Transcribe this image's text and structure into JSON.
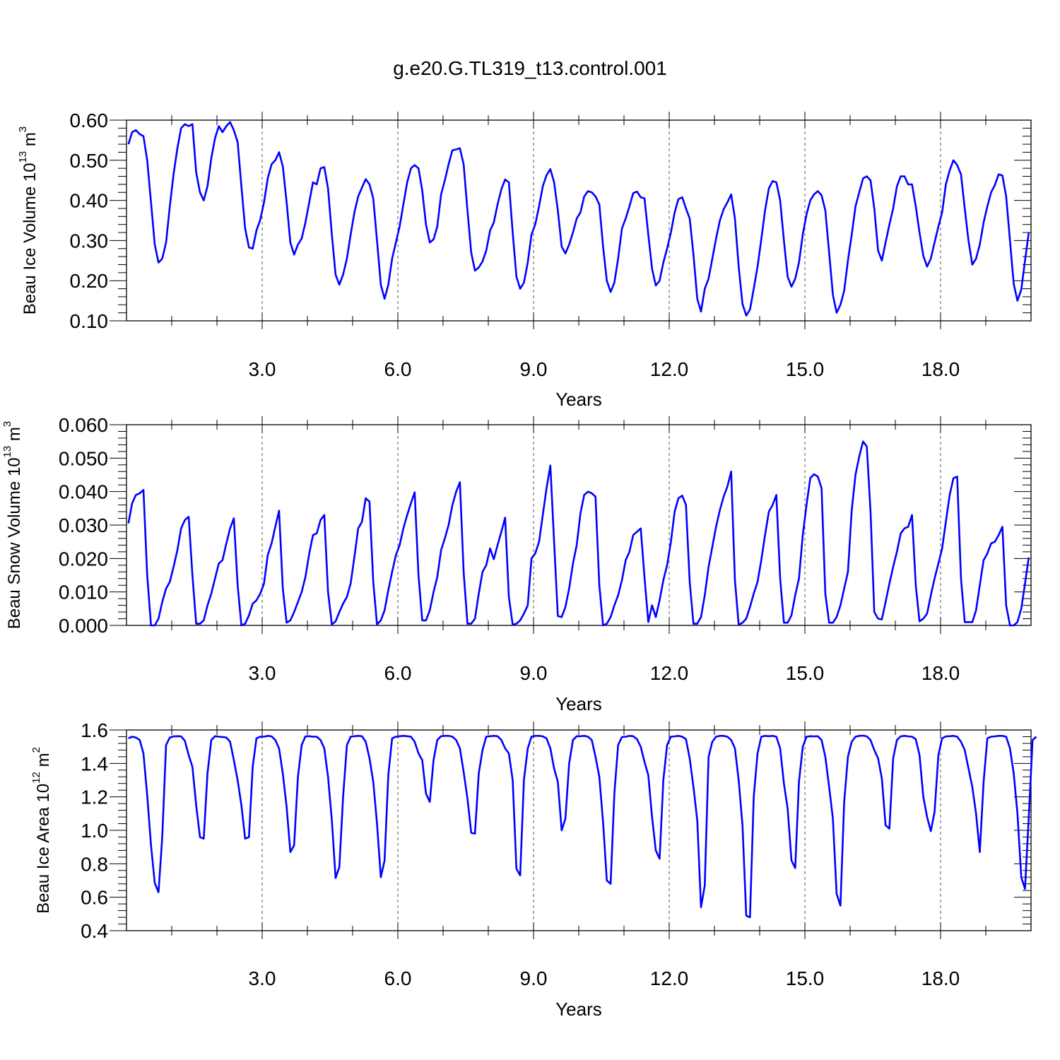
{
  "title": "g.e20.G.TL319_t13.control.001",
  "colors": {
    "series": "#0000ff",
    "axes": "#000000",
    "background": "#ffffff"
  },
  "chart_data": [
    {
      "type": "line",
      "name": "ice-volume",
      "title": "g.e20.G.TL319_t13.control.001",
      "xlabel": "Years",
      "ylabel": {
        "main": "Beau Ice Volume 10",
        "sup": "13",
        "mid": " m",
        "sup2": "3"
      },
      "xlim": [
        0.0,
        20.0
      ],
      "ylim": [
        0.1,
        0.6
      ],
      "xticks": [
        3.0,
        6.0,
        9.0,
        12.0,
        15.0,
        18.0
      ],
      "xtick_labels": [
        "3.0",
        "6.0",
        "9.0",
        "12.0",
        "15.0",
        "18.0"
      ],
      "yticks": [
        0.1,
        0.2,
        0.3,
        0.4,
        0.5,
        0.6
      ],
      "ytick_labels": [
        "0.10",
        "0.20",
        "0.30",
        "0.40",
        "0.50",
        "0.60"
      ],
      "grid": "vertical dashed at major x ticks",
      "x_start": 0.0417,
      "x_step": 0.0833,
      "series": [
        {
          "values": [
            0.54,
            0.57,
            0.575,
            0.565,
            0.56,
            0.5,
            0.395,
            0.29,
            0.245,
            0.255,
            0.295,
            0.385,
            0.465,
            0.53,
            0.58,
            0.59,
            0.585,
            0.59,
            0.47,
            0.42,
            0.4,
            0.435,
            0.505,
            0.555,
            0.585,
            0.57,
            0.585,
            0.595,
            0.575,
            0.545,
            0.435,
            0.33,
            0.283,
            0.28,
            0.325,
            0.352,
            0.395,
            0.455,
            0.49,
            0.5,
            0.52,
            0.485,
            0.395,
            0.295,
            0.265,
            0.29,
            0.305,
            0.345,
            0.395,
            0.445,
            0.44,
            0.48,
            0.483,
            0.43,
            0.315,
            0.215,
            0.19,
            0.215,
            0.255,
            0.315,
            0.37,
            0.41,
            0.432,
            0.453,
            0.44,
            0.405,
            0.3,
            0.19,
            0.155,
            0.19,
            0.255,
            0.295,
            0.335,
            0.39,
            0.445,
            0.48,
            0.488,
            0.48,
            0.425,
            0.34,
            0.295,
            0.303,
            0.335,
            0.415,
            0.45,
            0.49,
            0.525,
            0.527,
            0.53,
            0.49,
            0.375,
            0.27,
            0.225,
            0.233,
            0.248,
            0.275,
            0.325,
            0.345,
            0.39,
            0.428,
            0.452,
            0.445,
            0.32,
            0.21,
            0.18,
            0.195,
            0.245,
            0.315,
            0.34,
            0.385,
            0.435,
            0.463,
            0.478,
            0.445,
            0.375,
            0.285,
            0.268,
            0.29,
            0.32,
            0.355,
            0.37,
            0.41,
            0.423,
            0.42,
            0.41,
            0.39,
            0.285,
            0.2,
            0.172,
            0.195,
            0.255,
            0.33,
            0.355,
            0.385,
            0.418,
            0.422,
            0.408,
            0.405,
            0.315,
            0.23,
            0.188,
            0.2,
            0.245,
            0.28,
            0.32,
            0.37,
            0.403,
            0.408,
            0.38,
            0.355,
            0.265,
            0.155,
            0.123,
            0.18,
            0.205,
            0.255,
            0.305,
            0.35,
            0.378,
            0.395,
            0.415,
            0.355,
            0.235,
            0.142,
            0.113,
            0.128,
            0.18,
            0.235,
            0.303,
            0.375,
            0.43,
            0.448,
            0.445,
            0.4,
            0.3,
            0.21,
            0.185,
            0.205,
            0.245,
            0.315,
            0.365,
            0.4,
            0.415,
            0.423,
            0.413,
            0.375,
            0.27,
            0.165,
            0.12,
            0.14,
            0.175,
            0.25,
            0.315,
            0.385,
            0.42,
            0.455,
            0.46,
            0.45,
            0.38,
            0.275,
            0.25,
            0.295,
            0.34,
            0.38,
            0.435,
            0.46,
            0.46,
            0.44,
            0.44,
            0.385,
            0.32,
            0.262,
            0.235,
            0.255,
            0.295,
            0.335,
            0.37,
            0.44,
            0.475,
            0.5,
            0.488,
            0.465,
            0.38,
            0.3,
            0.24,
            0.255,
            0.29,
            0.345,
            0.385,
            0.42,
            0.438,
            0.465,
            0.462,
            0.41,
            0.3,
            0.192,
            0.15,
            0.178,
            0.25,
            0.32
          ]
        }
      ]
    },
    {
      "type": "line",
      "name": "snow-volume",
      "xlabel": "Years",
      "ylabel": {
        "main": "Beau Snow Volume 10",
        "sup": "13",
        "mid": " m",
        "sup2": "3"
      },
      "xlim": [
        0.0,
        20.0
      ],
      "ylim": [
        0.0,
        0.06
      ],
      "xticks": [
        3.0,
        6.0,
        9.0,
        12.0,
        15.0,
        18.0
      ],
      "xtick_labels": [
        "3.0",
        "6.0",
        "9.0",
        "12.0",
        "15.0",
        "18.0"
      ],
      "yticks": [
        0.0,
        0.01,
        0.02,
        0.03,
        0.04,
        0.05,
        0.06
      ],
      "ytick_labels": [
        "0.000",
        "0.010",
        "0.020",
        "0.030",
        "0.040",
        "0.050",
        "0.060"
      ],
      "grid": "vertical dashed at major x ticks",
      "x_start": 0.0417,
      "x_step": 0.0833,
      "series": [
        {
          "values": [
            0.0305,
            0.0365,
            0.039,
            0.0395,
            0.0405,
            0.015,
            0.0,
            0.0,
            0.002,
            0.007,
            0.011,
            0.013,
            0.0175,
            0.0225,
            0.029,
            0.0315,
            0.0325,
            0.015,
            0.0005,
            0.0005,
            0.0015,
            0.006,
            0.0095,
            0.014,
            0.0185,
            0.0195,
            0.0245,
            0.029,
            0.032,
            0.012,
            0.0,
            0.0005,
            0.003,
            0.0065,
            0.0075,
            0.0095,
            0.0125,
            0.021,
            0.0245,
            0.0295,
            0.0343,
            0.011,
            0.0008,
            0.0015,
            0.004,
            0.007,
            0.01,
            0.0145,
            0.0215,
            0.027,
            0.0275,
            0.0315,
            0.033,
            0.01,
            0.0003,
            0.0012,
            0.004,
            0.0065,
            0.0085,
            0.0125,
            0.0205,
            0.029,
            0.031,
            0.038,
            0.037,
            0.013,
            0.0003,
            0.0015,
            0.0045,
            0.0105,
            0.016,
            0.021,
            0.024,
            0.029,
            0.033,
            0.0365,
            0.0398,
            0.015,
            0.0015,
            0.0015,
            0.0045,
            0.01,
            0.0145,
            0.0225,
            0.026,
            0.03,
            0.036,
            0.04,
            0.0428,
            0.016,
            0.0005,
            0.0005,
            0.002,
            0.0095,
            0.016,
            0.018,
            0.023,
            0.0198,
            0.024,
            0.028,
            0.0322,
            0.0085,
            0.0002,
            0.0005,
            0.0015,
            0.0035,
            0.006,
            0.02,
            0.0215,
            0.025,
            0.033,
            0.041,
            0.0478,
            0.025,
            0.0028,
            0.0025,
            0.0055,
            0.011,
            0.0185,
            0.024,
            0.0335,
            0.039,
            0.04,
            0.0395,
            0.0385,
            0.012,
            0.0,
            0.0005,
            0.0025,
            0.006,
            0.009,
            0.0135,
            0.0195,
            0.022,
            0.027,
            0.028,
            0.029,
            0.0145,
            0.001,
            0.006,
            0.0025,
            0.0075,
            0.0135,
            0.018,
            0.025,
            0.034,
            0.038,
            0.0388,
            0.036,
            0.013,
            0.0005,
            0.0005,
            0.0025,
            0.009,
            0.0175,
            0.0235,
            0.0295,
            0.0345,
            0.0385,
            0.0415,
            0.046,
            0.0135,
            0.0002,
            0.0008,
            0.002,
            0.0055,
            0.0095,
            0.013,
            0.0195,
            0.027,
            0.034,
            0.036,
            0.039,
            0.014,
            0.0008,
            0.0008,
            0.003,
            0.009,
            0.014,
            0.027,
            0.036,
            0.044,
            0.0452,
            0.0445,
            0.041,
            0.0095,
            0.0008,
            0.0008,
            0.0025,
            0.006,
            0.011,
            0.016,
            0.0345,
            0.045,
            0.0505,
            0.055,
            0.0535,
            0.034,
            0.004,
            0.002,
            0.0018,
            0.007,
            0.0125,
            0.0175,
            0.022,
            0.0275,
            0.029,
            0.0295,
            0.033,
            0.012,
            0.0012,
            0.002,
            0.0035,
            0.009,
            0.014,
            0.0185,
            0.023,
            0.031,
            0.039,
            0.044,
            0.0445,
            0.014,
            0.001,
            0.001,
            0.001,
            0.0045,
            0.012,
            0.0195,
            0.0215,
            0.0245,
            0.025,
            0.027,
            0.0295,
            0.006,
            0.0,
            0.0,
            0.001,
            0.005,
            0.0125,
            0.0203
          ]
        }
      ]
    },
    {
      "type": "line",
      "name": "ice-area",
      "xlabel": "Years",
      "ylabel": {
        "main": "Beau Ice Area 10",
        "sup": "12",
        "mid": " m",
        "sup2": "2"
      },
      "xlim": [
        0.0,
        20.0
      ],
      "ylim": [
        0.4,
        1.6
      ],
      "xticks": [
        3.0,
        6.0,
        9.0,
        12.0,
        15.0,
        18.0
      ],
      "xtick_labels": [
        "3.0",
        "6.0",
        "9.0",
        "12.0",
        "15.0",
        "18.0"
      ],
      "yticks": [
        0.4,
        0.6,
        0.8,
        1.0,
        1.2,
        1.4,
        1.6
      ],
      "ytick_labels": [
        "0.4",
        "0.6",
        "0.8",
        "1.0",
        "1.2",
        "1.4",
        "1.6"
      ],
      "grid": "vertical dashed at major x ticks",
      "x_start": 0.0417,
      "x_step": 0.0833,
      "series": [
        {
          "values": [
            1.55,
            1.56,
            1.555,
            1.54,
            1.46,
            1.21,
            0.91,
            0.685,
            0.63,
            0.96,
            1.51,
            1.555,
            1.562,
            1.563,
            1.562,
            1.535,
            1.45,
            1.38,
            1.15,
            0.96,
            0.95,
            1.34,
            1.54,
            1.563,
            1.56,
            1.558,
            1.555,
            1.53,
            1.42,
            1.3,
            1.15,
            0.95,
            0.96,
            1.38,
            1.55,
            1.56,
            1.56,
            1.565,
            1.562,
            1.54,
            1.49,
            1.34,
            1.14,
            0.87,
            0.91,
            1.32,
            1.51,
            1.562,
            1.563,
            1.56,
            1.56,
            1.54,
            1.49,
            1.32,
            1.06,
            0.715,
            0.78,
            1.2,
            1.51,
            1.56,
            1.563,
            1.565,
            1.563,
            1.53,
            1.43,
            1.29,
            1.04,
            0.72,
            0.82,
            1.33,
            1.55,
            1.56,
            1.563,
            1.565,
            1.563,
            1.56,
            1.53,
            1.46,
            1.42,
            1.22,
            1.17,
            1.42,
            1.54,
            1.563,
            1.565,
            1.565,
            1.56,
            1.54,
            1.49,
            1.35,
            1.19,
            0.985,
            0.98,
            1.34,
            1.48,
            1.56,
            1.563,
            1.565,
            1.563,
            1.54,
            1.49,
            1.46,
            1.3,
            0.77,
            0.73,
            1.3,
            1.49,
            1.56,
            1.565,
            1.565,
            1.562,
            1.55,
            1.49,
            1.37,
            1.29,
            1.0,
            1.07,
            1.4,
            1.54,
            1.563,
            1.563,
            1.565,
            1.56,
            1.54,
            1.44,
            1.32,
            1.05,
            0.7,
            0.68,
            1.22,
            1.51,
            1.558,
            1.56,
            1.565,
            1.563,
            1.545,
            1.5,
            1.41,
            1.33,
            1.08,
            0.88,
            0.83,
            1.3,
            1.51,
            1.56,
            1.562,
            1.565,
            1.56,
            1.545,
            1.43,
            1.26,
            1.06,
            0.54,
            0.67,
            1.44,
            1.53,
            1.56,
            1.565,
            1.565,
            1.56,
            1.54,
            1.49,
            1.3,
            1.03,
            0.49,
            0.48,
            1.2,
            1.46,
            1.56,
            1.565,
            1.563,
            1.565,
            1.56,
            1.49,
            1.28,
            1.13,
            0.82,
            0.775,
            1.29,
            1.5,
            1.56,
            1.563,
            1.562,
            1.563,
            1.54,
            1.44,
            1.26,
            1.07,
            0.62,
            0.55,
            1.17,
            1.44,
            1.53,
            1.56,
            1.565,
            1.566,
            1.562,
            1.54,
            1.48,
            1.43,
            1.31,
            1.03,
            1.01,
            1.43,
            1.54,
            1.562,
            1.565,
            1.562,
            1.56,
            1.545,
            1.45,
            1.2,
            1.08,
            0.995,
            1.11,
            1.45,
            1.55,
            1.562,
            1.563,
            1.565,
            1.56,
            1.53,
            1.48,
            1.37,
            1.26,
            1.1,
            0.87,
            1.29,
            1.55,
            1.56,
            1.562,
            1.565,
            1.565,
            1.56,
            1.49,
            1.34,
            1.1,
            0.72,
            0.65,
            1.08,
            1.54,
            1.56
          ]
        }
      ]
    }
  ]
}
